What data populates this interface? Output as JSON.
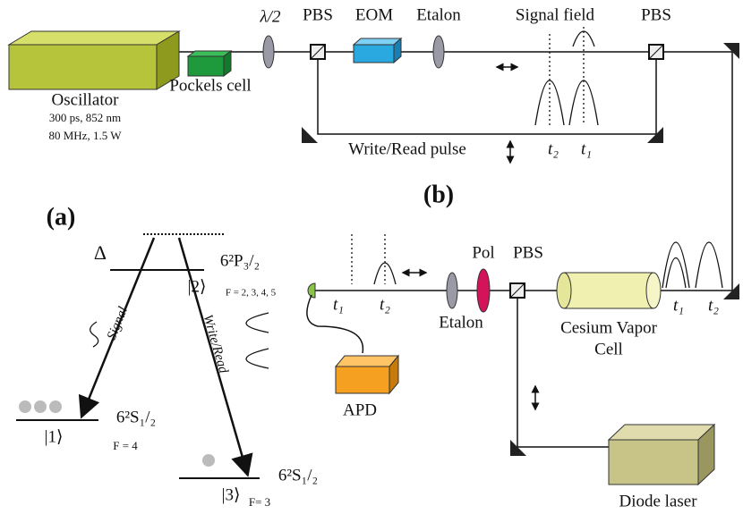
{
  "panel_labels": [
    "(a)",
    "(b)"
  ],
  "top": {
    "oscillator": {
      "name": "Oscillator",
      "specs": [
        "300 ps, 852 nm",
        "80 MHz, 1.5 W"
      ]
    },
    "components": [
      "Pockels cell",
      "λ/2",
      "PBS",
      "EOM",
      "Etalon",
      "Signal field",
      "PBS"
    ],
    "beam_label": "Write/Read pulse",
    "times": [
      "t₂",
      "t₁"
    ]
  },
  "levels": {
    "detuning": "Δ",
    "excited": {
      "term": "6²P₃/₂",
      "ket": "|2⟩",
      "F": "F = 2, 3, 4, 5"
    },
    "ground1": {
      "term": "6²S₁/₂",
      "ket": "|1⟩",
      "F": "F = 4"
    },
    "ground3": {
      "term": "6²S₁/₂",
      "ket": "|3⟩",
      "F": "F= 3"
    },
    "transitions": [
      "Signal",
      "Write/Read"
    ]
  },
  "bottom": {
    "components": [
      "Etalon",
      "Pol",
      "PBS",
      "APD",
      "Diode laser"
    ],
    "cell": [
      "Cesium Vapor",
      "Cell"
    ],
    "times_detector": [
      "t₁",
      "t₂"
    ],
    "times_cell": [
      "t₁",
      "t₂"
    ]
  }
}
